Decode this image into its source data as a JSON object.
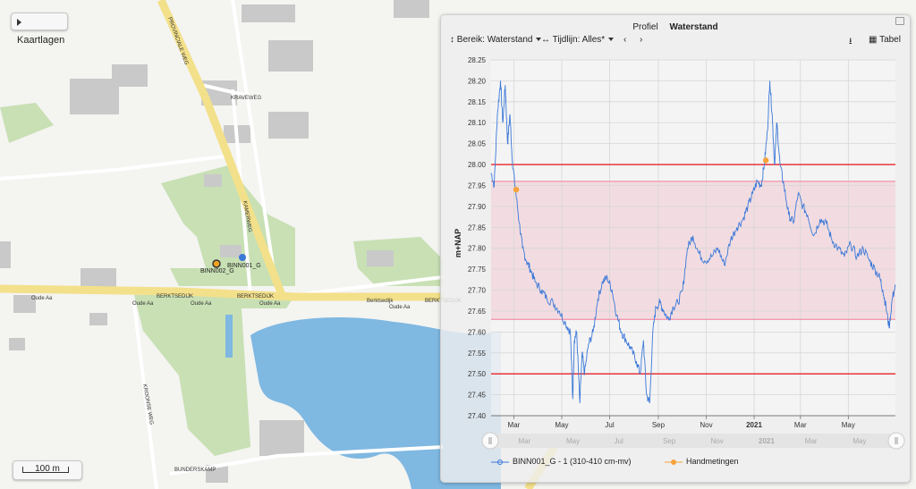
{
  "map": {
    "layers_button": "Kaartlagen",
    "scale_label": "100 m",
    "markers": [
      {
        "name": "BINN001_G",
        "color": "#3b78d8"
      },
      {
        "name": "BINN002_G",
        "color": "#f2a421"
      }
    ],
    "road_labels": [
      "Berktsedijk",
      "BERKTSEDIJK",
      "BERKTSEDIJK",
      "BERKTSEDIJK",
      "Oude Aa",
      "Oude Aa",
      "Oude Aa",
      "Oude Aa",
      "Oude Aa",
      "BUNDERSKAMP",
      "KRAVEWEG",
      "KROONSE WEG",
      "KAMERWEG",
      "PROVINCIALE WEG"
    ]
  },
  "panel": {
    "tabs": [
      "Profiel",
      "Waterstand"
    ],
    "active_tab": "Waterstand",
    "toolbar": {
      "range_label": "Bereik:",
      "range_value": "Waterstand",
      "timeline_label": "Tijdlijn:",
      "timeline_value": "Alles*",
      "prev_icon": "chevron-left-icon",
      "next_icon": "chevron-right-icon",
      "download_icon": "download-icon",
      "table_label": "Tabel"
    }
  },
  "chart_data": {
    "type": "line",
    "ylabel": "m+NAP",
    "ylim": [
      27.4,
      28.25
    ],
    "yticks": [
      "28.25",
      "28.20",
      "28.15",
      "28.10",
      "28.05",
      "28.00",
      "27.95",
      "27.90",
      "27.85",
      "27.80",
      "27.75",
      "27.70",
      "27.65",
      "27.60",
      "27.55",
      "27.50",
      "27.45",
      "27.40"
    ],
    "xlim": [
      "2020-02-01",
      "2021-06-30"
    ],
    "xticks": [
      {
        "label": "Mar",
        "date": "2020-03-01"
      },
      {
        "label": "May",
        "date": "2020-05-01"
      },
      {
        "label": "Jul",
        "date": "2020-07-01"
      },
      {
        "label": "Sep",
        "date": "2020-09-01"
      },
      {
        "label": "Nov",
        "date": "2020-11-01"
      },
      {
        "label": "2021",
        "date": "2021-01-01"
      },
      {
        "label": "Mar",
        "date": "2021-03-01"
      },
      {
        "label": "May",
        "date": "2021-05-01"
      }
    ],
    "navigator_labels": [
      "Mar",
      "May",
      "Jul",
      "Sep",
      "Nov",
      "2021",
      "Mar",
      "May"
    ],
    "grid": true,
    "band": {
      "lower": 27.63,
      "upper": 27.96,
      "color": "#f0c8d2"
    },
    "limit_lines": [
      {
        "value": 28.0,
        "color": "#e8212a"
      },
      {
        "value": 27.96,
        "color": "#f29ab0"
      },
      {
        "value": 27.63,
        "color": "#f29ab0"
      },
      {
        "value": 27.5,
        "color": "#e8212a"
      }
    ],
    "series": [
      {
        "name": "BINN001_G - 1 (310-410 cm-mv)",
        "color": "#3b78d8",
        "x": [
          "2020-02-01",
          "2020-02-05",
          "2020-02-09",
          "2020-02-13",
          "2020-02-16",
          "2020-02-19",
          "2020-02-22",
          "2020-02-25",
          "2020-02-28",
          "2020-03-03",
          "2020-03-08",
          "2020-03-12",
          "2020-03-17",
          "2020-03-22",
          "2020-03-28",
          "2020-04-05",
          "2020-04-12",
          "2020-04-20",
          "2020-04-28",
          "2020-05-06",
          "2020-05-12",
          "2020-05-15",
          "2020-05-17",
          "2020-05-20",
          "2020-05-24",
          "2020-05-27",
          "2020-05-30",
          "2020-06-04",
          "2020-06-10",
          "2020-06-16",
          "2020-06-22",
          "2020-06-28",
          "2020-07-04",
          "2020-07-10",
          "2020-07-16",
          "2020-07-22",
          "2020-07-28",
          "2020-08-04",
          "2020-08-09",
          "2020-08-13",
          "2020-08-17",
          "2020-08-21",
          "2020-08-25",
          "2020-08-29",
          "2020-09-03",
          "2020-09-08",
          "2020-09-14",
          "2020-09-20",
          "2020-09-26",
          "2020-10-02",
          "2020-10-08",
          "2020-10-15",
          "2020-10-22",
          "2020-10-30",
          "2020-11-08",
          "2020-11-16",
          "2020-11-24",
          "2020-12-02",
          "2020-12-10",
          "2020-12-18",
          "2020-12-24",
          "2020-12-30",
          "2021-01-05",
          "2021-01-10",
          "2021-01-14",
          "2021-01-18",
          "2021-01-21",
          "2021-01-24",
          "2021-01-27",
          "2021-01-30",
          "2021-02-03",
          "2021-02-08",
          "2021-02-14",
          "2021-02-20",
          "2021-02-26",
          "2021-03-04",
          "2021-03-10",
          "2021-03-18",
          "2021-03-26",
          "2021-04-03",
          "2021-04-10",
          "2021-04-18",
          "2021-04-26",
          "2021-05-04",
          "2021-05-12",
          "2021-05-20",
          "2021-05-28",
          "2021-06-04",
          "2021-06-10",
          "2021-06-14",
          "2021-06-18",
          "2021-06-22",
          "2021-06-26",
          "2021-06-30"
        ],
        "y": [
          27.98,
          27.95,
          28.12,
          28.2,
          28.1,
          28.19,
          28.05,
          28.12,
          28.01,
          27.94,
          27.86,
          27.8,
          27.77,
          27.75,
          27.72,
          27.7,
          27.68,
          27.67,
          27.65,
          27.62,
          27.6,
          27.44,
          27.58,
          27.6,
          27.43,
          27.55,
          27.5,
          27.57,
          27.6,
          27.68,
          27.72,
          27.73,
          27.7,
          27.64,
          27.6,
          27.58,
          27.56,
          27.53,
          27.5,
          27.58,
          27.45,
          27.43,
          27.6,
          27.66,
          27.67,
          27.65,
          27.63,
          27.66,
          27.67,
          27.7,
          27.8,
          27.83,
          27.79,
          27.77,
          27.78,
          27.8,
          27.76,
          27.82,
          27.85,
          27.87,
          27.9,
          27.93,
          27.96,
          27.95,
          28.0,
          28.08,
          28.2,
          28.12,
          28.0,
          28.1,
          28.0,
          27.95,
          27.88,
          27.86,
          27.93,
          27.9,
          27.88,
          27.83,
          27.87,
          27.86,
          27.82,
          27.8,
          27.78,
          27.81,
          27.78,
          27.8,
          27.77,
          27.75,
          27.73,
          27.7,
          27.66,
          27.61,
          27.68,
          27.71
        ]
      },
      {
        "name": "Handmetingen",
        "color": "#f7a23a",
        "x": [
          "2020-03-04",
          "2021-01-16"
        ],
        "y": [
          27.94,
          28.01
        ]
      }
    ]
  }
}
